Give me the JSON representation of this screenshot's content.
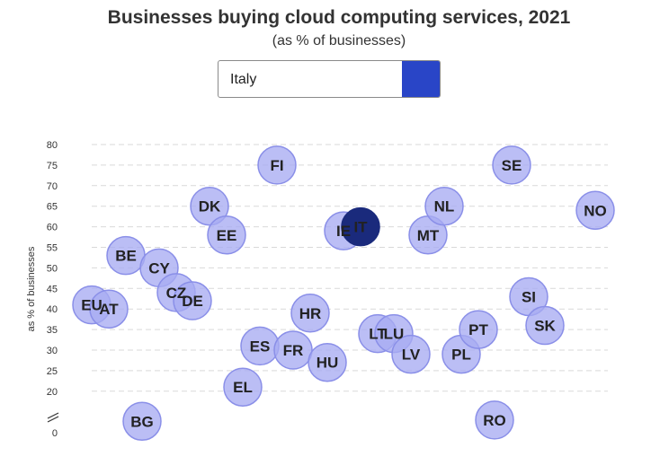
{
  "title": "Businesses buying cloud computing services, 2021",
  "subtitle": "(as % of businesses)",
  "selector": {
    "selected": "Italy"
  },
  "colors": {
    "bubble_fill": "#a8acf2",
    "bubble_stroke": "#8a8fe8",
    "highlight_fill": "#1a2a7c",
    "button": "#2945c7",
    "grid": "#d9d9d9"
  },
  "chart_data": {
    "type": "scatter",
    "title": "Businesses buying cloud computing services, 2021",
    "subtitle": "(as % of businesses)",
    "ylabel": "as % of businesses",
    "y_ticks": [
      "0",
      "20",
      "25",
      "30",
      "35",
      "40",
      "45",
      "50",
      "55",
      "60",
      "65",
      "70",
      "75",
      "80"
    ],
    "ylim": [
      0,
      80
    ],
    "axis_break": "between 0 and 20",
    "grid": true,
    "highlight": "IT",
    "points": [
      {
        "label": "EU",
        "value": 41
      },
      {
        "label": "AT",
        "value": 40
      },
      {
        "label": "BE",
        "value": 53
      },
      {
        "label": "BG",
        "value": 9
      },
      {
        "label": "CY",
        "value": 50
      },
      {
        "label": "CZ",
        "value": 44
      },
      {
        "label": "DE",
        "value": 42
      },
      {
        "label": "DK",
        "value": 65
      },
      {
        "label": "EE",
        "value": 58
      },
      {
        "label": "EL",
        "value": 21
      },
      {
        "label": "ES",
        "value": 31
      },
      {
        "label": "FI",
        "value": 75
      },
      {
        "label": "FR",
        "value": 30
      },
      {
        "label": "HR",
        "value": 39
      },
      {
        "label": "HU",
        "value": 27
      },
      {
        "label": "IE",
        "value": 59
      },
      {
        "label": "IT",
        "value": 60
      },
      {
        "label": "LT",
        "value": 34
      },
      {
        "label": "LU",
        "value": 34
      },
      {
        "label": "LV",
        "value": 29
      },
      {
        "label": "MT",
        "value": 58
      },
      {
        "label": "NL",
        "value": 65
      },
      {
        "label": "PL",
        "value": 29
      },
      {
        "label": "PT",
        "value": 35
      },
      {
        "label": "RO",
        "value": 10
      },
      {
        "label": "SE",
        "value": 75
      },
      {
        "label": "SI",
        "value": 43
      },
      {
        "label": "SK",
        "value": 36
      },
      {
        "label": "NO",
        "value": 64
      }
    ]
  }
}
